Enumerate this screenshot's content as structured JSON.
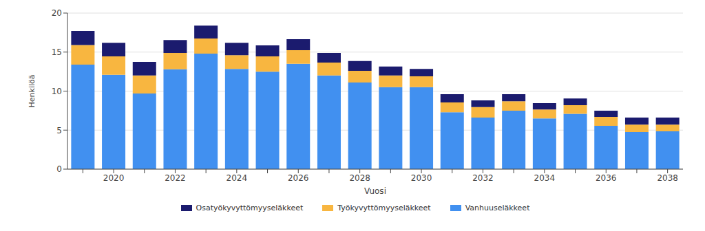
{
  "chart_data": {
    "type": "bar",
    "stacked": true,
    "grid": true,
    "legend": "bottom",
    "x_label": "Vuosi",
    "y_label": "Henkilöä",
    "categories": [
      null,
      "2020",
      null,
      "2022",
      null,
      "2024",
      null,
      "2026",
      null,
      "2028",
      null,
      "2030",
      null,
      "2032",
      null,
      "2034",
      null,
      "2036",
      null,
      "2038"
    ],
    "ylim": [
      0,
      20
    ],
    "yticks": [
      0,
      5,
      10,
      15,
      20
    ],
    "series": [
      {
        "name": "Osatyökyvyttömyyseläkkeet",
        "color": "#1b1b6e",
        "values": [
          1.8,
          1.75,
          1.75,
          1.65,
          1.65,
          1.6,
          1.4,
          1.4,
          1.25,
          1.25,
          1.15,
          0.95,
          1.05,
          0.85,
          0.9,
          0.8,
          0.85,
          0.8,
          0.9,
          0.9
        ]
      },
      {
        "name": "Työkyvyttömyyseläkkeet",
        "color": "#f8b640",
        "values": [
          2.5,
          2.35,
          2.3,
          2.1,
          1.95,
          1.75,
          1.95,
          1.75,
          1.65,
          1.5,
          1.5,
          1.4,
          1.25,
          1.35,
          1.2,
          1.15,
          1.1,
          1.15,
          0.95,
          0.85
        ]
      },
      {
        "name": "Vanhuuseläkkeet",
        "color": "#4190f0",
        "values": [
          13.4,
          12.1,
          9.7,
          12.8,
          14.8,
          12.85,
          12.5,
          13.5,
          12.0,
          11.1,
          10.5,
          10.5,
          7.3,
          6.6,
          7.5,
          6.5,
          7.1,
          5.55,
          4.75,
          4.85
        ]
      }
    ]
  }
}
